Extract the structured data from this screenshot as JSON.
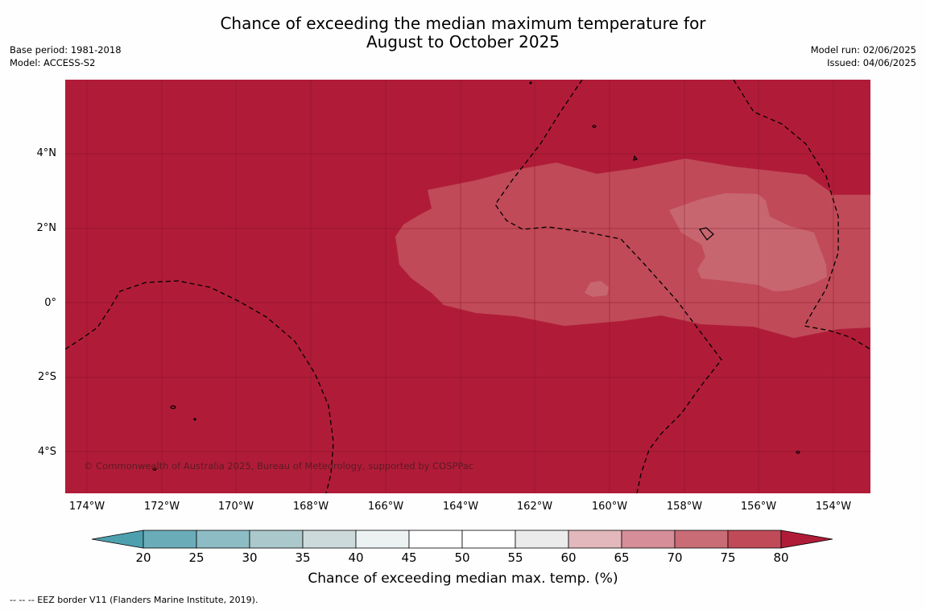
{
  "title": {
    "line1": "Chance of exceeding the median maximum temperature for",
    "line2": "August to October 2025"
  },
  "meta_left": {
    "base_period": "Base period: 1981-2018",
    "model": "Model: ACCESS-S2"
  },
  "meta_right": {
    "model_run": "Model run: 02/06/2025",
    "issued": "Issued: 04/06/2025"
  },
  "map": {
    "lon_ticks": [
      "174°W",
      "172°W",
      "170°W",
      "168°W",
      "166°W",
      "164°W",
      "162°W",
      "160°W",
      "158°W",
      "156°W",
      "154°W"
    ],
    "lat_ticks": [
      "4°N",
      "2°N",
      "0°",
      "2°S",
      "4°S"
    ],
    "background_category": "80",
    "colors": {
      "c80": "#b01c38",
      "c75": "#c04a58",
      "c70": "#c86670",
      "c65": "#dcb8bc"
    },
    "copyright": "© Commonwealth of Australia 2025, Bureau of Meteorology, supported by COSPPac"
  },
  "colorbar": {
    "ticks": [
      "20",
      "25",
      "30",
      "35",
      "40",
      "45",
      "50",
      "55",
      "60",
      "65",
      "70",
      "75",
      "80"
    ],
    "colors": [
      "#6aadb9",
      "#8dbcc5",
      "#abc9cd",
      "#cddadc",
      "#ecf2f2",
      "#ffffff",
      "#ffffff",
      "#ebebeb",
      "#e2b8bc",
      "#d68e98",
      "#c96c75",
      "#c04a58"
    ],
    "low_extend_color": "#4fa0ae",
    "high_extend_color": "#b01c38",
    "label": "Chance of exceeding median max. temp. (%)"
  },
  "footnote": "--  --  -- EEZ border V11 (Flanders Marine Institute, 2019)."
}
